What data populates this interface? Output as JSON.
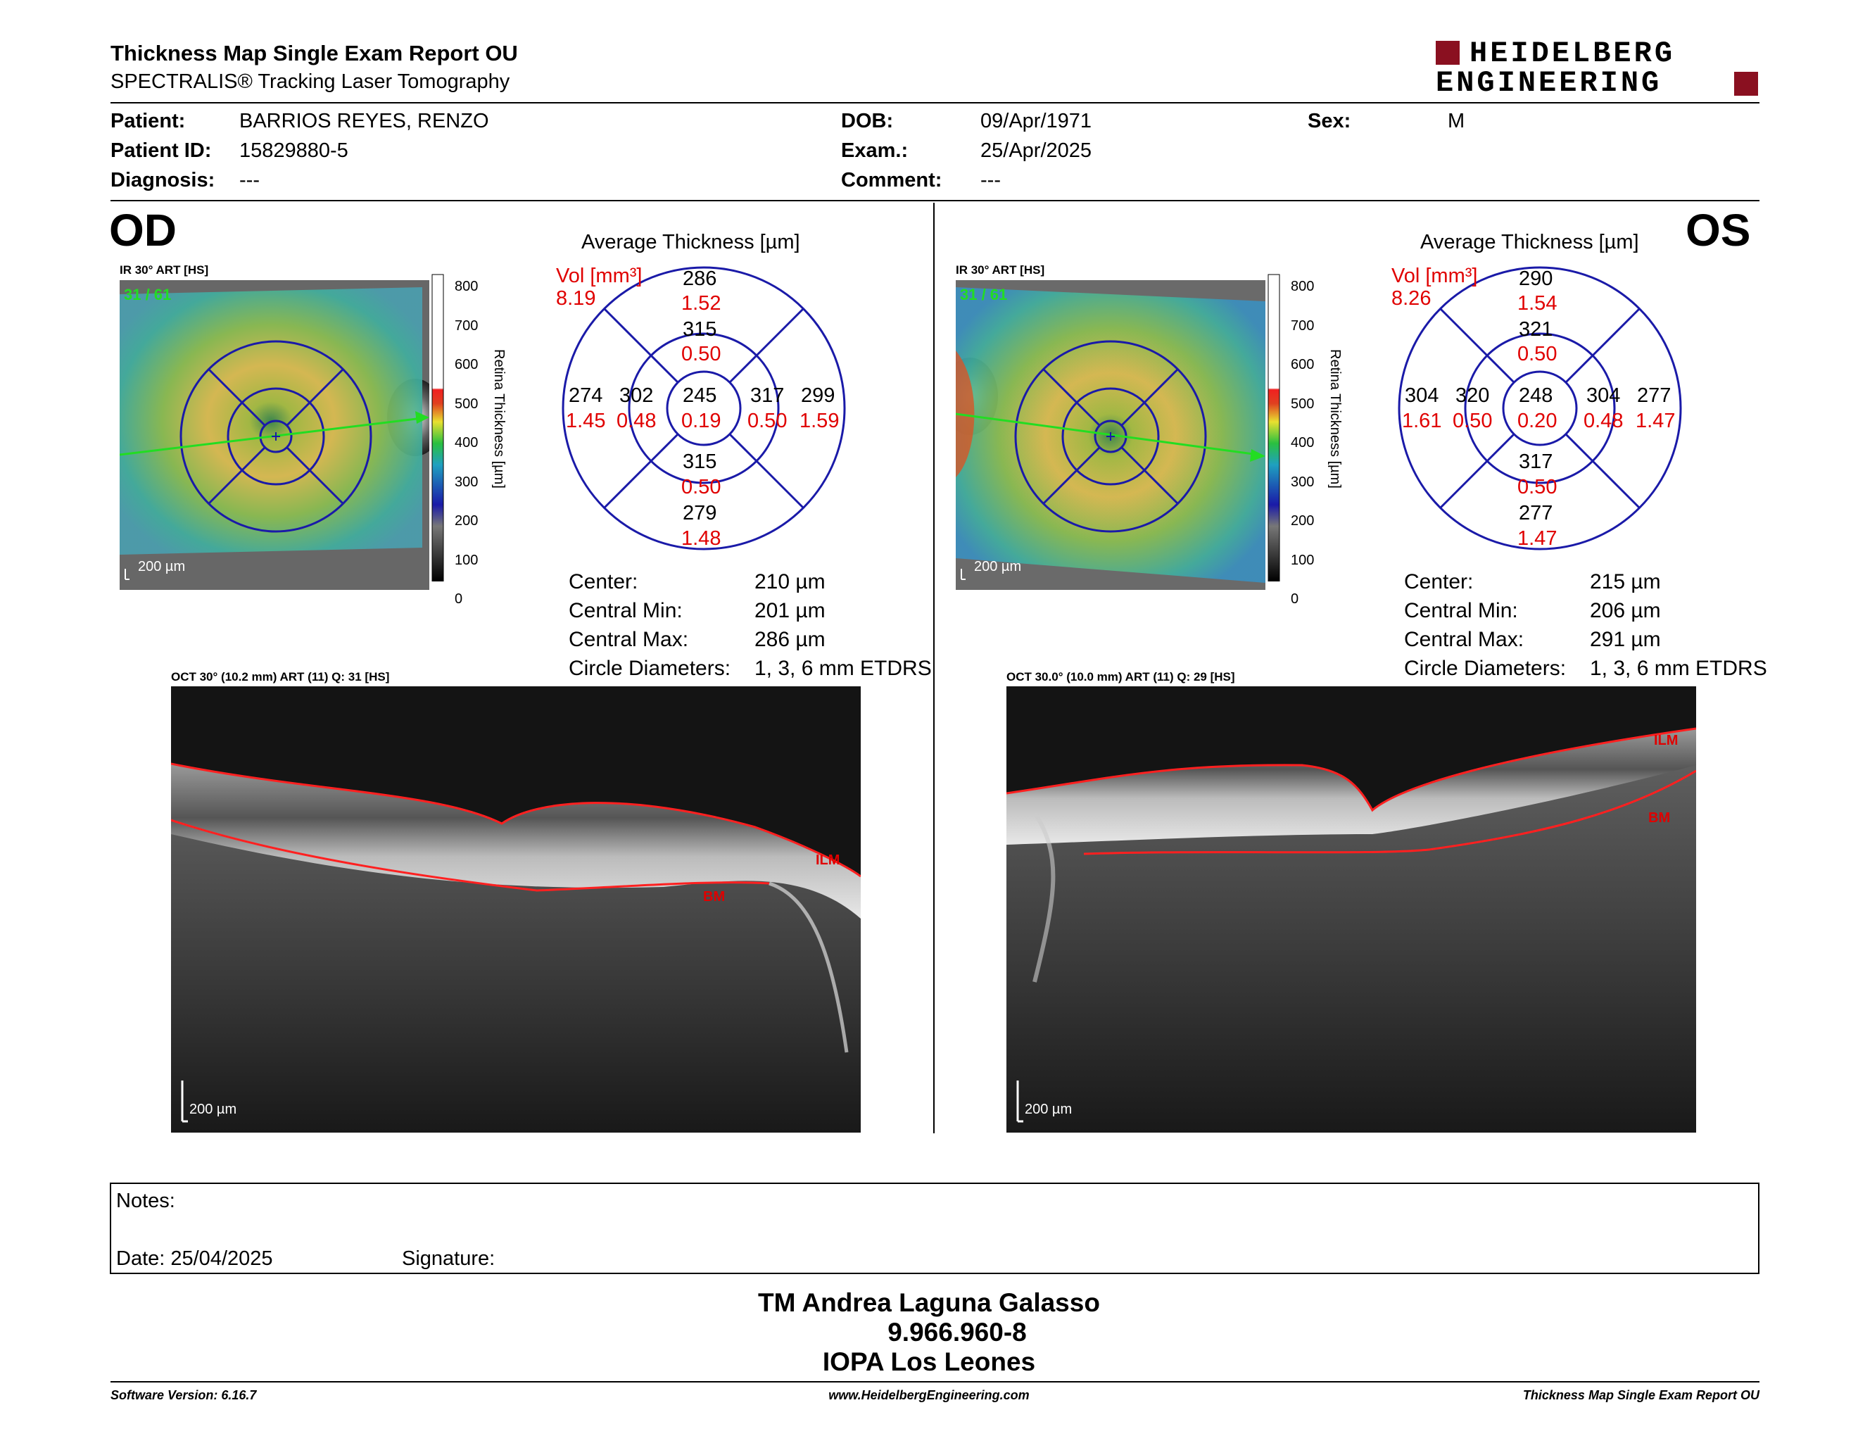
{
  "header": {
    "title": "Thickness Map Single Exam Report OU",
    "subtitle": "SPECTRALIS® Tracking Laser Tomography",
    "logo_line1": "HEIDELBERG",
    "logo_line2": "ENGINEERING"
  },
  "patient": {
    "patient_label": "Patient:",
    "patient_value": "BARRIOS REYES, RENZO",
    "id_label": "Patient ID:",
    "id_value": "15829880-5",
    "diag_label": "Diagnosis:",
    "diag_value": "---",
    "dob_label": "DOB:",
    "dob_value": "09/Apr/1971",
    "exam_label": "Exam.:",
    "exam_value": "25/Apr/2025",
    "comment_label": "Comment:",
    "comment_value": "---",
    "sex_label": "Sex:",
    "sex_value": "M"
  },
  "scale": {
    "title": "Retina Thickness [µm]",
    "ticks": [
      "800",
      "700",
      "600",
      "500",
      "400",
      "300",
      "200",
      "100",
      "0"
    ]
  },
  "od": {
    "eye": "OD",
    "ir_label": "IR 30° ART [HS]",
    "ir_count": "31 / 61",
    "ir_scale": "200 µm",
    "avg_title": "Average Thickness [µm]",
    "vol_label": "Vol [mm³]",
    "vol_total": "8.19",
    "grid": {
      "outer_sup": "286",
      "outer_sup_vol": "1.52",
      "inner_sup": "315",
      "inner_sup_vol": "0.50",
      "outer_left": "274",
      "outer_left_vol": "1.45",
      "inner_left": "302",
      "inner_left_vol": "0.48",
      "center": "245",
      "center_vol": "0.19",
      "inner_right": "317",
      "inner_right_vol": "0.50",
      "outer_right": "299",
      "outer_right_vol": "1.59",
      "inner_inf": "315",
      "inner_inf_vol": "0.50",
      "outer_inf": "279",
      "outer_inf_vol": "1.48"
    },
    "stats": {
      "center_label": "Center:",
      "center_value": "210 µm",
      "min_label": "Central Min:",
      "min_value": "201 µm",
      "max_label": "Central Max:",
      "max_value": "286 µm",
      "diam_label": "Circle Diameters:",
      "diam_value": "1, 3, 6 mm ETDRS"
    },
    "oct_label": "OCT 30° (10.2 mm) ART (11) Q: 31 [HS]",
    "ilm": "ILM",
    "bm": "BM",
    "oct_scale": "200 µm"
  },
  "os": {
    "eye": "OS",
    "ir_label": "IR 30° ART [HS]",
    "ir_count": "31 / 61",
    "ir_scale": "200 µm",
    "avg_title": "Average Thickness [µm]",
    "vol_label": "Vol [mm³]",
    "vol_total": "8.26",
    "grid": {
      "outer_sup": "290",
      "outer_sup_vol": "1.54",
      "inner_sup": "321",
      "inner_sup_vol": "0.50",
      "outer_left": "304",
      "outer_left_vol": "1.61",
      "inner_left": "320",
      "inner_left_vol": "0.50",
      "center": "248",
      "center_vol": "0.20",
      "inner_right": "304",
      "inner_right_vol": "0.48",
      "outer_right": "277",
      "outer_right_vol": "1.47",
      "inner_inf": "317",
      "inner_inf_vol": "0.50",
      "outer_inf": "277",
      "outer_inf_vol": "1.47"
    },
    "stats": {
      "center_label": "Center:",
      "center_value": "215 µm",
      "min_label": "Central Min:",
      "min_value": "206 µm",
      "max_label": "Central Max:",
      "max_value": "291 µm",
      "diam_label": "Circle Diameters:",
      "diam_value": "1, 3, 6 mm ETDRS"
    },
    "oct_label": "OCT 30.0° (10.0 mm) ART (11) Q: 29 [HS]",
    "ilm": "ILM",
    "bm": "BM",
    "oct_scale": "200 µm"
  },
  "notes": {
    "notes_label": "Notes:",
    "date_label": "Date: 25/04/2025",
    "signature_label": "Signature:"
  },
  "signature_block": {
    "name": "TM Andrea Laguna Galasso",
    "id": "9.966.960-8",
    "org": "IOPA Los Leones"
  },
  "footer": {
    "software": "Software Version: 6.16.7",
    "url": "www.HeidelbergEngineering.com",
    "report": "Thickness Map Single Exam Report OU"
  },
  "colors": {
    "grid_blue": "#1a1aa8",
    "vol_red": "#e00000",
    "logo_red": "#8a1020",
    "seg_red": "#ff2020",
    "green": "#22dd22"
  }
}
